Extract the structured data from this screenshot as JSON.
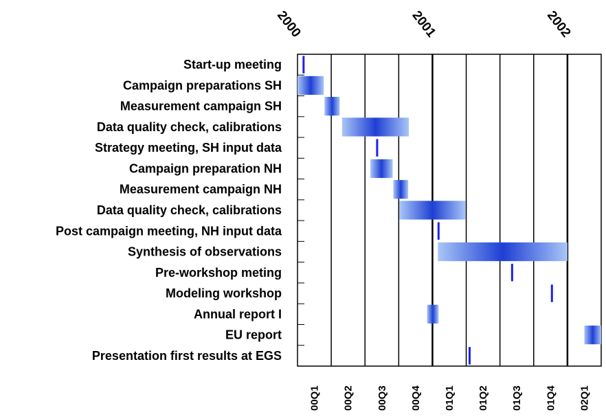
{
  "chart_data": {
    "type": "gantt",
    "time_unit": "quarter",
    "start_quarter": "00Q1",
    "year_labels": [
      {
        "label": "2000",
        "start_quarter": 0
      },
      {
        "label": "2001",
        "start_quarter": 4
      },
      {
        "label": "2002",
        "start_quarter": 8
      }
    ],
    "quarters": [
      "00Q1",
      "00Q2",
      "00Q3",
      "00Q4",
      "01Q1",
      "01Q2",
      "01Q3",
      "01Q4",
      "02Q1"
    ],
    "tasks": [
      {
        "label": "Start-up meeting",
        "kind": "milestone",
        "start": 0.18
      },
      {
        "label": "Campaign preparations SH",
        "kind": "bar",
        "start": 0.0,
        "end": 0.78
      },
      {
        "label": "Measurement campaign SH",
        "kind": "bar",
        "start": 0.8,
        "end": 1.25
      },
      {
        "label": "Data quality check, calibrations",
        "kind": "bar",
        "start": 1.32,
        "end": 3.3
      },
      {
        "label": "Strategy meeting, SH input data",
        "kind": "milestone",
        "start": 2.36
      },
      {
        "label": "Campaign preparation NH",
        "kind": "bar",
        "start": 2.16,
        "end": 2.82
      },
      {
        "label": "Measurement campaign NH",
        "kind": "bar",
        "start": 2.84,
        "end": 3.28
      },
      {
        "label": "Data quality check, calibrations",
        "kind": "bar",
        "start": 3.02,
        "end": 4.98
      },
      {
        "label": "Post campaign meeting, NH input data",
        "kind": "milestone",
        "start": 4.18
      },
      {
        "label": "Synthesis of observations",
        "kind": "bar",
        "start": 4.16,
        "end": 8.0
      },
      {
        "label": "Pre-workshop meting",
        "kind": "milestone",
        "start": 6.36
      },
      {
        "label": "Modeling workshop",
        "kind": "milestone",
        "start": 7.54
      },
      {
        "label": "Annual report I",
        "kind": "bar",
        "start": 3.84,
        "end": 4.18
      },
      {
        "label": "EU report",
        "kind": "bar",
        "start": 8.5,
        "end": 9.0
      },
      {
        "label": "Presentation first results at EGS",
        "kind": "milestone",
        "start": 5.1
      }
    ],
    "colors": {
      "bar_light": "#a9c6f7",
      "bar_dark": "#1e3fd4",
      "milestone": "#1a22e6",
      "gridline": "#000000"
    },
    "grid": true,
    "legend": "none"
  }
}
